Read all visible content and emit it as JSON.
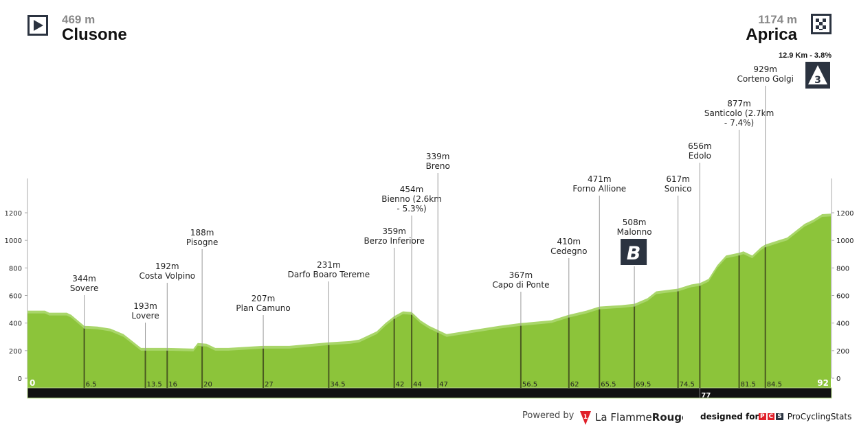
{
  "start": {
    "altitude": "469 m",
    "name": "Clusone",
    "icon": "play-icon"
  },
  "finish": {
    "altitude": "1174 m",
    "name": "Aprica",
    "icon": "checkered-flag-icon",
    "climb": {
      "category": "3",
      "info": "12.9 Km - 3.8%",
      "icon": "climb-category-icon"
    }
  },
  "footer": {
    "powered_by": "Powered by",
    "brand_a": "La Flamme",
    "brand_b": "Rouge",
    "designed_for": "designed for",
    "pcs": [
      "P",
      "C",
      "S"
    ],
    "pcs_name": "ProCyclingStats"
  },
  "colors": {
    "profile": "#8cc43a",
    "profile_light": "#a9d66a",
    "bar": "#111111",
    "line": "#4a5a20",
    "badge": "#2b3340"
  },
  "chart_data": {
    "type": "area",
    "xlim": [
      0,
      92
    ],
    "ylim": [
      0,
      1200
    ],
    "yticks": [
      0,
      200,
      400,
      600,
      800,
      1000,
      1200
    ],
    "profile": {
      "x": [
        0,
        2,
        2.5,
        4.5,
        5,
        6.5,
        8,
        9.5,
        11,
        12,
        13,
        16,
        19,
        19.5,
        20.5,
        21.5,
        23,
        27,
        30,
        34.5,
        37,
        38,
        39,
        40,
        41,
        42,
        43,
        44,
        45,
        46,
        47,
        48,
        50,
        54,
        56.5,
        60,
        62,
        64,
        65.5,
        68,
        69.5,
        71,
        72,
        74.5,
        76,
        77,
        78,
        79,
        80,
        81.5,
        82,
        83,
        84,
        84.5,
        86,
        87,
        88,
        89,
        90,
        91,
        92
      ],
      "y": [
        470,
        470,
        455,
        455,
        440,
        360,
        355,
        340,
        300,
        250,
        200,
        200,
        195,
        235,
        230,
        200,
        200,
        215,
        215,
        240,
        250,
        260,
        290,
        320,
        380,
        430,
        465,
        460,
        400,
        360,
        330,
        300,
        320,
        360,
        380,
        400,
        440,
        470,
        500,
        510,
        520,
        560,
        610,
        630,
        660,
        670,
        700,
        800,
        870,
        890,
        900,
        870,
        930,
        950,
        980,
        1000,
        1050,
        1100,
        1130,
        1170,
        1174
      ]
    },
    "km_labels": [
      "0",
      "6.5",
      "13.5",
      "16",
      "20",
      "27",
      "34.5",
      "42",
      "44",
      "47",
      "56.5",
      "62",
      "65.5",
      "69.5",
      "74.5",
      "81.5",
      "84.5",
      "92"
    ],
    "bar_label": "77",
    "markers": [
      {
        "km": 6.5,
        "elev": "344m",
        "name": "Sovere"
      },
      {
        "km": 13.5,
        "elev": "193m",
        "name": "Lovere"
      },
      {
        "km": 16,
        "elev": "192m",
        "name": "Costa Volpino"
      },
      {
        "km": 20,
        "elev": "188m",
        "name": "Pisogne"
      },
      {
        "km": 27,
        "elev": "207m",
        "name": "Plan Camuno"
      },
      {
        "km": 34.5,
        "elev": "231m",
        "name": "Darfo Boaro Tereme"
      },
      {
        "km": 42,
        "elev": "359m",
        "name": "Berzo Inferiore"
      },
      {
        "km": 44,
        "elev": "454m",
        "name": "Bienno (2.6km - 5.3%)"
      },
      {
        "km": 47,
        "elev": "339m",
        "name": "Breno"
      },
      {
        "km": 56.5,
        "elev": "367m",
        "name": "Capo di Ponte"
      },
      {
        "km": 62,
        "elev": "410m",
        "name": "Cedegno"
      },
      {
        "km": 65.5,
        "elev": "471m",
        "name": "Forno Allione"
      },
      {
        "km": 69.5,
        "elev": "508m",
        "name": "Malonno",
        "sprint": "B"
      },
      {
        "km": 74.5,
        "elev": "617m",
        "name": "Sonico"
      },
      {
        "km": 77,
        "elev": "656m",
        "name": "Edolo"
      },
      {
        "km": 81.5,
        "elev": "877m",
        "name": "Santicolo (2.7km - 7.4%)"
      },
      {
        "km": 84.5,
        "elev": "929m",
        "name": "Corteno Golgi"
      }
    ]
  }
}
